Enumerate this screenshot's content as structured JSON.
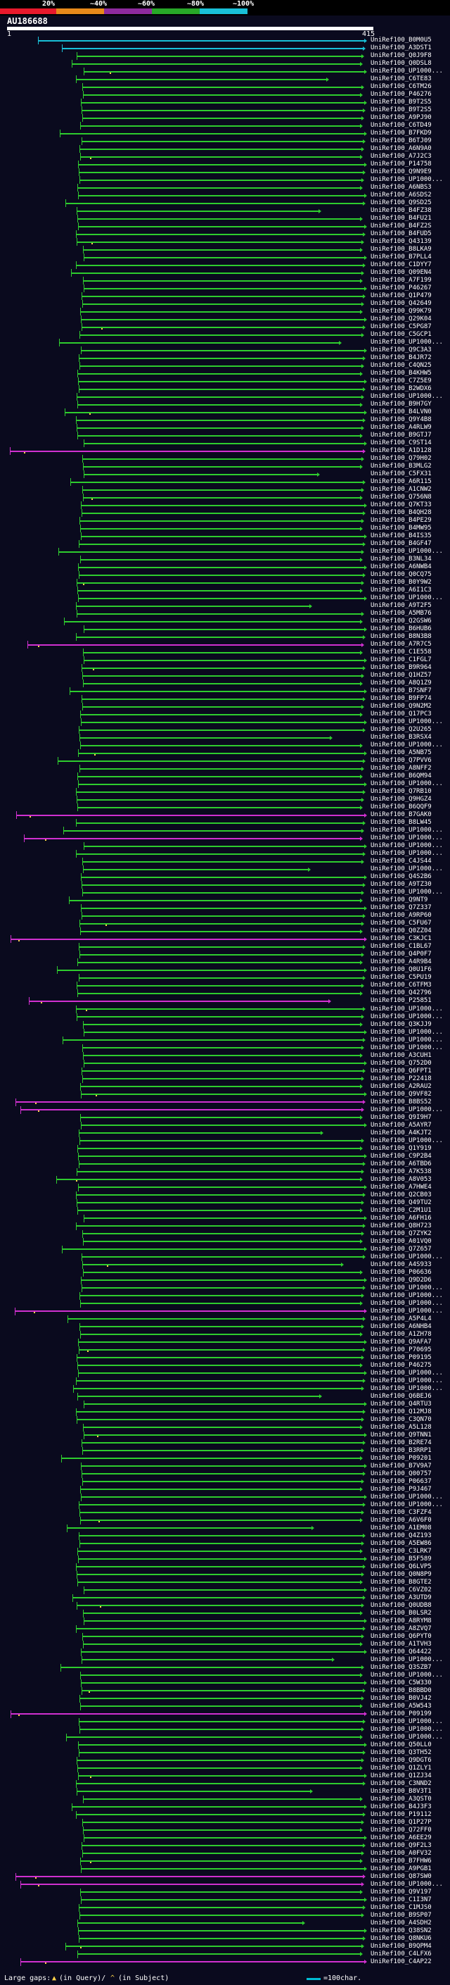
{
  "legend": {
    "labels": [
      "20%",
      "~40%",
      "~60%",
      "~80%",
      "~100%"
    ],
    "colors": [
      "#e8192c",
      "#e88a1a",
      "#8e2a9e",
      "#28a828",
      "#19c0d8"
    ]
  },
  "query": {
    "title": "AU186688",
    "start": "1",
    "end": "415"
  },
  "hits": [
    "UniRef100_B0M0U5",
    "UniRef100_A3DST1",
    "UniRef100_Q0J9F8",
    "UniRef100_Q0DSL8",
    "UniRef100_UP1000...",
    "UniRef100_C6TE83",
    "UniRef100_C6TM26",
    "UniRef100_P46276",
    "UniRef100_B9T2S5",
    "UniRef100_B9T2S5",
    "UniRef100_A9PJ90",
    "UniRef100_C6TD49",
    "UniRef100_B7FKD9",
    "UniRef100_B6TJ09",
    "UniRef100_A6N9A0",
    "UniRef100_A7J2C3",
    "UniRef100_P14758",
    "UniRef100_Q9N9E9",
    "UniRef100_UP1000...",
    "UniRef100_A6NBS3",
    "UniRef100_A6SDS2",
    "UniRef100_Q9SD25",
    "UniRef100_B4FZ38",
    "UniRef100_B4FU21",
    "UniRef100_B4FZ2S",
    "UniRef100_B4FUD5",
    "UniRef100_Q43139",
    "UniRef100_B8LKA9",
    "UniRef100_B7PLL4",
    "UniRef100_C1DYY7",
    "UniRef100_Q09EN4",
    "UniRef100_A7F199",
    "UniRef100_P46267",
    "UniRef100_Q1P479",
    "UniRef100_Q42649",
    "UniRef100_Q99K79",
    "UniRef100_Q29K04",
    "UniRef100_C5PG87",
    "UniRef100_C5GCP1",
    "UniRef100_UP1000...",
    "UniRef100_Q9C3A3",
    "UniRef100_B4JR72",
    "UniRef100_C4QN25",
    "UniRef100_B4KHW5",
    "UniRef100_C7Z5E9",
    "UniRef100_B2WDX6",
    "UniRef100_UP1000...",
    "UniRef100_B9H7GY",
    "UniRef100_B4LVN0",
    "UniRef100_Q9Y4B8",
    "UniRef100_A4RLW9",
    "UniRef100_B9GTJ7",
    "UniRef100_C9ST14",
    "UniRef100_A1D128",
    "UniRef100_Q79H02",
    "UniRef100_B3MLG2",
    "UniRef100_C5FX31",
    "UniRef100_A6R115",
    "UniRef100_A1CNW2",
    "UniRef100_Q756N8",
    "UniRef100_Q7KT33",
    "UniRef100_B4QH28",
    "UniRef100_B4PE29",
    "UniRef100_B4MW95",
    "UniRef100_B4IS35",
    "UniRef100_B4GF47",
    "UniRef100_UP1000...",
    "UniRef100_B3NL34",
    "UniRef100_A6NWB4",
    "UniRef100_Q0CQ75",
    "UniRef100_B0Y9W2",
    "UniRef100_A6I1C3",
    "UniRef100_UP1000...",
    "UniRef100_A9T2F5",
    "UniRef100_A5MB76",
    "UniRef100_Q2GSW6",
    "UniRef100_B6HUB6",
    "UniRef100_B8N3B8",
    "UniRef100_A7R7C5",
    "UniRef100_C1E558",
    "UniRef100_C1FGL7",
    "UniRef100_B9R964",
    "UniRef100_Q1HZ57",
    "UniRef100_A8Q1Z9",
    "UniRef100_B7SNF7",
    "UniRef100_B9FP74",
    "UniRef100_Q9N2M2",
    "UniRef100_Q17PC3",
    "UniRef100_UP1000...",
    "UniRef100_Q2U265",
    "UniRef100_B3RSX4",
    "UniRef100_UP1000...",
    "UniRef100_A5NB75",
    "UniRef100_Q7PVV6",
    "UniRef100_A8NFF2",
    "UniRef100_B6QM94",
    "UniRef100_UP1000...",
    "UniRef100_Q7RB10",
    "UniRef100_Q9HGZ4",
    "UniRef100_B6QQF9",
    "UniRef100_B7GAK0",
    "UniRef100_B8LW45",
    "UniRef100_UP1000...",
    "UniRef100_UP1000...",
    "UniRef100_UP1000...",
    "UniRef100_UP1000...",
    "UniRef100_C4JS44",
    "UniRef100_UP1000...",
    "UniRef100_Q4S2B6",
    "UniRef100_A9TZ30",
    "UniRef100_UP1000...",
    "UniRef100_Q9NT9",
    "UniRef100_Q7Z337",
    "UniRef100_A9RP60",
    "UniRef100_C5FU67",
    "UniRef100_Q0ZZ04",
    "UniRef100_C3KJC1",
    "UniRef100_C1BL67",
    "UniRef100_Q4P0F7",
    "UniRef100_A4R9B4",
    "UniRef100_Q0U1F6",
    "UniRef100_C5PU19",
    "UniRef100_C6TFM3",
    "UniRef100_Q42796",
    "UniRef100_P25851",
    "UniRef100_UP1000...",
    "UniRef100_UP1000...",
    "UniRef100_Q3KJJ9",
    "UniRef100_UP1000...",
    "UniRef100_UP1000...",
    "UniRef100_UP1000...",
    "UniRef100_A3CUH1",
    "UniRef100_Q752D0",
    "UniRef100_Q6FPT1",
    "UniRef100_P22418",
    "UniRef100_A2RAU2",
    "UniRef100_Q9VF82",
    "UniRef100_B8BS52",
    "UniRef100_UP1000...",
    "UniRef100_Q9I9H7",
    "UniRef100_A5AYR7",
    "UniRef100_A4KJT2",
    "UniRef100_UP1000...",
    "UniRef100_Q1Y919",
    "UniRef100_C9P2B4",
    "UniRef100_A6TBD6",
    "UniRef100_A7K538",
    "UniRef100_A8V053",
    "UniRef100_A7HWE4",
    "UniRef100_Q2CB03",
    "UniRef100_Q49TU2",
    "UniRef100_C2M1U1",
    "UniRef100_A6FH16",
    "UniRef100_Q8H723",
    "UniRef100_Q7ZYK2",
    "UniRef100_A01VQ0",
    "UniRef100_Q7Z657",
    "UniRef100_UP1000...",
    "UniRef100_A4S933",
    "UniRef100_P06636",
    "UniRef100_Q9D2D6",
    "UniRef100_UP1000...",
    "UniRef100_UP1000...",
    "UniRef100_UP1000...",
    "UniRef100_UP1000...",
    "UniRef100_A5P4L4",
    "UniRef100_A6NHB4",
    "UniRef100_A1ZH78",
    "UniRef100_Q9AFA7",
    "UniRef100_P70695",
    "UniRef100_P09195",
    "UniRef100_P46275",
    "UniRef100_UP1000...",
    "UniRef100_UP1000...",
    "UniRef100_UP1000...",
    "UniRef100_Q6BEJ6",
    "UniRef100_Q4RTU3",
    "UniRef100_Q12MJ8",
    "UniRef100_C3QN70",
    "UniRef100_A5L128",
    "UniRef100_Q9TNN1",
    "UniRef100_B2RE74",
    "UniRef100_B3RRP1",
    "UniRef100_P09201",
    "UniRef100_B7V9A7",
    "UniRef100_Q00757",
    "UniRef100_P06637",
    "UniRef100_P9J467",
    "UniRef100_UP1000...",
    "UniRef100_UP1000...",
    "UniRef100_C3FZF4",
    "UniRef100_A6V6F0",
    "UniRef100_A1EM08",
    "UniRef100_Q4Z193",
    "UniRef100_A5EW86",
    "UniRef100_C3LRK7",
    "UniRef100_B5F589",
    "UniRef100_Q6LVP5",
    "UniRef100_Q0N8P9",
    "UniRef100_B8GTE2",
    "UniRef100_C6VZ02",
    "UniRef100_A3UTD9",
    "UniRef100_Q0UDB8",
    "UniRef100_B0LSR2",
    "UniRef100_A8RYM8",
    "UniRef100_A8ZVQ7",
    "UniRef100_Q6PYT0",
    "UniRef100_A1TVH3",
    "UniRef100_Q64422",
    "UniRef100_UP1000...",
    "UniRef100_Q3SZB7",
    "UniRef100_UP1000...",
    "UniRef100_C5W330",
    "UniRef100_B8BBD0",
    "UniRef100_B0VJ42",
    "UniRef100_A5W543",
    "UniRef100_P09199",
    "UniRef100_UP1000...",
    "UniRef100_UP1000...",
    "UniRef100_UP1000...",
    "UniRef100_Q50LL0",
    "UniRef100_Q3TH52",
    "UniRef100_Q9DGT6",
    "UniRef100_Q1ZLY1",
    "UniRef100_Q1ZJ34",
    "UniRef100_C3NND2",
    "UniRef100_B8V3T1",
    "UniRef100_A3QST0",
    "UniRef100_B4J3F3",
    "UniRef100_P19112",
    "UniRef100_Q1P27P",
    "UniRef100_Q72FF0",
    "UniRef100_A6EE29",
    "UniRef100_Q9F2L3",
    "UniRef100_A0FV32",
    "UniRef100_B7FHW6",
    "UniRef100_A9PGB1",
    "UniRef100_Q87SW0",
    "UniRef100_UP1000...",
    "UniRef100_Q9V197",
    "UniRef100_C1I3N7",
    "UniRef100_C1MJS0",
    "UniRef100_B9SP07",
    "UniRef100_A4SDH2",
    "UniRef100_Q38SN2",
    "UniRef100_Q8NKU6",
    "UniRef100_B9QPM4",
    "UniRef100_C4LFX6",
    "UniRef100_C4AP22"
  ],
  "footer": {
    "gaps_label": "Large gaps:",
    "gaps_query": "(in Query)/",
    "gaps_subject": "(in Subject)",
    "scale_label": "=100char."
  }
}
